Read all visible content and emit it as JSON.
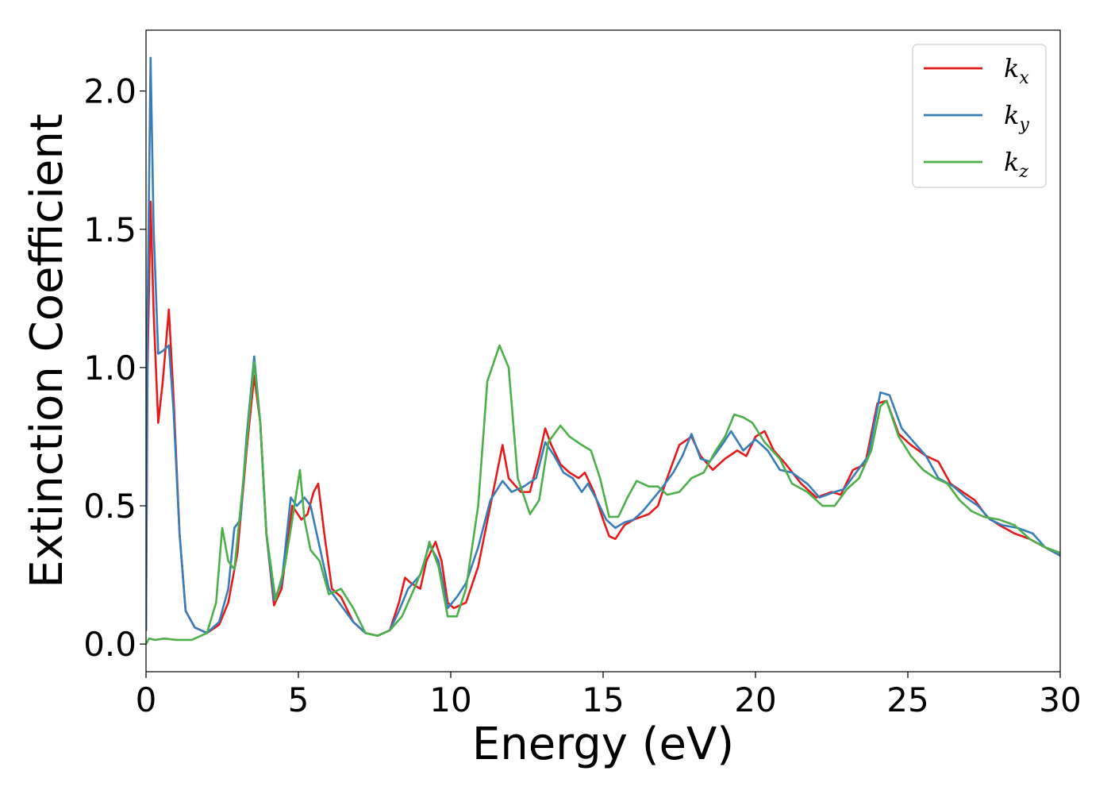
{
  "chart_data": {
    "type": "line",
    "xlabel": "Energy (eV)",
    "ylabel": "Extinction Coefficient",
    "xlim": [
      0,
      30
    ],
    "ylim": [
      -0.1,
      2.22
    ],
    "xticks": [
      0,
      5,
      10,
      15,
      20,
      25,
      30
    ],
    "yticks": [
      0.0,
      0.5,
      1.0,
      1.5,
      2.0
    ],
    "xtick_labels": [
      "0",
      "5",
      "10",
      "15",
      "20",
      "25",
      "30"
    ],
    "ytick_labels": [
      "0.0",
      "0.5",
      "1.0",
      "1.5",
      "2.0"
    ],
    "grid": false,
    "legend_position": "top-right",
    "series": [
      {
        "name": "kx",
        "label_main": "k",
        "label_sub": "x",
        "color": "#e41a1c",
        "points": [
          [
            0,
            0.05
          ],
          [
            0.05,
            1.0
          ],
          [
            0.15,
            1.6
          ],
          [
            0.25,
            1.2
          ],
          [
            0.4,
            0.8
          ],
          [
            0.55,
            0.95
          ],
          [
            0.75,
            1.21
          ],
          [
            0.9,
            0.9
          ],
          [
            1.1,
            0.4
          ],
          [
            1.3,
            0.12
          ],
          [
            1.6,
            0.06
          ],
          [
            2.0,
            0.04
          ],
          [
            2.4,
            0.07
          ],
          [
            2.7,
            0.15
          ],
          [
            3.0,
            0.33
          ],
          [
            3.3,
            0.7
          ],
          [
            3.55,
            0.97
          ],
          [
            3.75,
            0.8
          ],
          [
            3.95,
            0.4
          ],
          [
            4.2,
            0.14
          ],
          [
            4.45,
            0.2
          ],
          [
            4.8,
            0.5
          ],
          [
            5.1,
            0.45
          ],
          [
            5.3,
            0.47
          ],
          [
            5.5,
            0.55
          ],
          [
            5.65,
            0.58
          ],
          [
            5.85,
            0.4
          ],
          [
            6.1,
            0.2
          ],
          [
            6.4,
            0.17
          ],
          [
            6.8,
            0.08
          ],
          [
            7.2,
            0.04
          ],
          [
            7.6,
            0.03
          ],
          [
            8.0,
            0.05
          ],
          [
            8.3,
            0.15
          ],
          [
            8.5,
            0.24
          ],
          [
            8.7,
            0.22
          ],
          [
            9.0,
            0.2
          ],
          [
            9.2,
            0.3
          ],
          [
            9.5,
            0.37
          ],
          [
            9.7,
            0.3
          ],
          [
            9.9,
            0.15
          ],
          [
            10.1,
            0.13
          ],
          [
            10.5,
            0.15
          ],
          [
            10.9,
            0.28
          ],
          [
            11.3,
            0.5
          ],
          [
            11.7,
            0.72
          ],
          [
            11.9,
            0.6
          ],
          [
            12.3,
            0.55
          ],
          [
            12.6,
            0.55
          ],
          [
            12.9,
            0.68
          ],
          [
            13.1,
            0.78
          ],
          [
            13.3,
            0.72
          ],
          [
            13.6,
            0.65
          ],
          [
            13.9,
            0.62
          ],
          [
            14.2,
            0.6
          ],
          [
            14.4,
            0.62
          ],
          [
            14.7,
            0.55
          ],
          [
            15.0,
            0.45
          ],
          [
            15.2,
            0.39
          ],
          [
            15.4,
            0.38
          ],
          [
            15.7,
            0.43
          ],
          [
            16.0,
            0.45
          ],
          [
            16.5,
            0.47
          ],
          [
            16.8,
            0.5
          ],
          [
            17.1,
            0.6
          ],
          [
            17.5,
            0.72
          ],
          [
            17.9,
            0.75
          ],
          [
            18.2,
            0.68
          ],
          [
            18.6,
            0.63
          ],
          [
            19.0,
            0.67
          ],
          [
            19.4,
            0.7
          ],
          [
            19.7,
            0.68
          ],
          [
            20.0,
            0.75
          ],
          [
            20.3,
            0.77
          ],
          [
            20.6,
            0.7
          ],
          [
            21.0,
            0.65
          ],
          [
            21.5,
            0.58
          ],
          [
            22.0,
            0.53
          ],
          [
            22.5,
            0.55
          ],
          [
            22.8,
            0.54
          ],
          [
            23.2,
            0.63
          ],
          [
            23.6,
            0.65
          ],
          [
            24.0,
            0.87
          ],
          [
            24.3,
            0.88
          ],
          [
            24.7,
            0.76
          ],
          [
            25.1,
            0.72
          ],
          [
            25.6,
            0.68
          ],
          [
            26.0,
            0.66
          ],
          [
            26.4,
            0.58
          ],
          [
            26.8,
            0.55
          ],
          [
            27.2,
            0.52
          ],
          [
            27.6,
            0.46
          ],
          [
            28.0,
            0.43
          ],
          [
            28.5,
            0.4
          ],
          [
            29.0,
            0.38
          ],
          [
            29.5,
            0.35
          ],
          [
            30.0,
            0.32
          ]
        ]
      },
      {
        "name": "ky",
        "label_main": "k",
        "label_sub": "y",
        "color": "#377eb8",
        "points": [
          [
            0,
            0.05
          ],
          [
            0.05,
            1.2
          ],
          [
            0.15,
            2.12
          ],
          [
            0.25,
            1.5
          ],
          [
            0.4,
            1.05
          ],
          [
            0.55,
            1.06
          ],
          [
            0.75,
            1.08
          ],
          [
            0.9,
            0.85
          ],
          [
            1.1,
            0.4
          ],
          [
            1.3,
            0.12
          ],
          [
            1.6,
            0.06
          ],
          [
            2.0,
            0.04
          ],
          [
            2.4,
            0.08
          ],
          [
            2.7,
            0.2
          ],
          [
            2.9,
            0.42
          ],
          [
            3.1,
            0.45
          ],
          [
            3.3,
            0.75
          ],
          [
            3.55,
            1.04
          ],
          [
            3.75,
            0.8
          ],
          [
            3.95,
            0.4
          ],
          [
            4.2,
            0.16
          ],
          [
            4.45,
            0.22
          ],
          [
            4.75,
            0.53
          ],
          [
            4.95,
            0.5
          ],
          [
            5.2,
            0.53
          ],
          [
            5.4,
            0.5
          ],
          [
            5.7,
            0.35
          ],
          [
            6.0,
            0.2
          ],
          [
            6.4,
            0.14
          ],
          [
            6.8,
            0.08
          ],
          [
            7.2,
            0.04
          ],
          [
            7.6,
            0.03
          ],
          [
            8.0,
            0.05
          ],
          [
            8.3,
            0.12
          ],
          [
            8.6,
            0.2
          ],
          [
            9.0,
            0.25
          ],
          [
            9.3,
            0.36
          ],
          [
            9.6,
            0.3
          ],
          [
            9.9,
            0.13
          ],
          [
            10.2,
            0.17
          ],
          [
            10.5,
            0.22
          ],
          [
            10.9,
            0.35
          ],
          [
            11.3,
            0.52
          ],
          [
            11.7,
            0.59
          ],
          [
            12.0,
            0.55
          ],
          [
            12.4,
            0.57
          ],
          [
            12.8,
            0.6
          ],
          [
            13.1,
            0.73
          ],
          [
            13.4,
            0.68
          ],
          [
            13.7,
            0.62
          ],
          [
            14.0,
            0.6
          ],
          [
            14.3,
            0.55
          ],
          [
            14.5,
            0.58
          ],
          [
            14.8,
            0.52
          ],
          [
            15.1,
            0.45
          ],
          [
            15.4,
            0.42
          ],
          [
            15.7,
            0.44
          ],
          [
            16.0,
            0.45
          ],
          [
            16.3,
            0.48
          ],
          [
            16.6,
            0.52
          ],
          [
            16.9,
            0.56
          ],
          [
            17.3,
            0.62
          ],
          [
            17.6,
            0.68
          ],
          [
            17.9,
            0.76
          ],
          [
            18.2,
            0.67
          ],
          [
            18.5,
            0.66
          ],
          [
            18.9,
            0.72
          ],
          [
            19.2,
            0.77
          ],
          [
            19.6,
            0.7
          ],
          [
            20.0,
            0.74
          ],
          [
            20.4,
            0.7
          ],
          [
            20.8,
            0.63
          ],
          [
            21.2,
            0.62
          ],
          [
            21.7,
            0.58
          ],
          [
            22.1,
            0.53
          ],
          [
            22.6,
            0.55
          ],
          [
            22.9,
            0.56
          ],
          [
            23.3,
            0.62
          ],
          [
            23.7,
            0.68
          ],
          [
            24.1,
            0.91
          ],
          [
            24.4,
            0.9
          ],
          [
            24.8,
            0.78
          ],
          [
            25.2,
            0.73
          ],
          [
            25.6,
            0.68
          ],
          [
            26.0,
            0.6
          ],
          [
            26.5,
            0.57
          ],
          [
            26.9,
            0.53
          ],
          [
            27.3,
            0.5
          ],
          [
            27.7,
            0.45
          ],
          [
            28.1,
            0.43
          ],
          [
            28.6,
            0.42
          ],
          [
            29.1,
            0.4
          ],
          [
            29.5,
            0.35
          ],
          [
            30.0,
            0.32
          ]
        ]
      },
      {
        "name": "kz",
        "label_main": "k",
        "label_sub": "z",
        "color": "#4daf4a",
        "points": [
          [
            0,
            0.0
          ],
          [
            0.1,
            0.02
          ],
          [
            0.3,
            0.015
          ],
          [
            0.6,
            0.02
          ],
          [
            1.0,
            0.015
          ],
          [
            1.5,
            0.015
          ],
          [
            2.0,
            0.04
          ],
          [
            2.3,
            0.15
          ],
          [
            2.5,
            0.42
          ],
          [
            2.7,
            0.3
          ],
          [
            2.9,
            0.27
          ],
          [
            3.2,
            0.6
          ],
          [
            3.55,
            1.02
          ],
          [
            3.75,
            0.8
          ],
          [
            3.95,
            0.4
          ],
          [
            4.25,
            0.16
          ],
          [
            4.55,
            0.28
          ],
          [
            4.8,
            0.45
          ],
          [
            5.05,
            0.63
          ],
          [
            5.2,
            0.45
          ],
          [
            5.4,
            0.34
          ],
          [
            5.7,
            0.3
          ],
          [
            6.0,
            0.18
          ],
          [
            6.4,
            0.2
          ],
          [
            6.8,
            0.13
          ],
          [
            7.2,
            0.04
          ],
          [
            7.6,
            0.03
          ],
          [
            8.0,
            0.05
          ],
          [
            8.4,
            0.1
          ],
          [
            8.8,
            0.2
          ],
          [
            9.1,
            0.28
          ],
          [
            9.3,
            0.37
          ],
          [
            9.6,
            0.28
          ],
          [
            9.9,
            0.1
          ],
          [
            10.2,
            0.1
          ],
          [
            10.5,
            0.2
          ],
          [
            10.9,
            0.5
          ],
          [
            11.2,
            0.95
          ],
          [
            11.6,
            1.08
          ],
          [
            11.9,
            1.0
          ],
          [
            12.2,
            0.6
          ],
          [
            12.6,
            0.47
          ],
          [
            12.9,
            0.52
          ],
          [
            13.2,
            0.73
          ],
          [
            13.6,
            0.79
          ],
          [
            13.9,
            0.75
          ],
          [
            14.3,
            0.72
          ],
          [
            14.6,
            0.7
          ],
          [
            14.9,
            0.6
          ],
          [
            15.2,
            0.46
          ],
          [
            15.5,
            0.46
          ],
          [
            15.8,
            0.53
          ],
          [
            16.1,
            0.59
          ],
          [
            16.5,
            0.57
          ],
          [
            16.8,
            0.57
          ],
          [
            17.1,
            0.54
          ],
          [
            17.5,
            0.55
          ],
          [
            17.9,
            0.6
          ],
          [
            18.3,
            0.62
          ],
          [
            18.7,
            0.7
          ],
          [
            19.0,
            0.75
          ],
          [
            19.3,
            0.83
          ],
          [
            19.6,
            0.82
          ],
          [
            19.9,
            0.8
          ],
          [
            20.3,
            0.73
          ],
          [
            20.8,
            0.67
          ],
          [
            21.2,
            0.58
          ],
          [
            21.7,
            0.55
          ],
          [
            22.2,
            0.5
          ],
          [
            22.6,
            0.5
          ],
          [
            23.0,
            0.56
          ],
          [
            23.4,
            0.6
          ],
          [
            23.8,
            0.7
          ],
          [
            24.1,
            0.86
          ],
          [
            24.3,
            0.88
          ],
          [
            24.7,
            0.75
          ],
          [
            25.1,
            0.68
          ],
          [
            25.5,
            0.63
          ],
          [
            25.9,
            0.6
          ],
          [
            26.3,
            0.58
          ],
          [
            26.7,
            0.52
          ],
          [
            27.1,
            0.48
          ],
          [
            27.5,
            0.46
          ],
          [
            28.0,
            0.45
          ],
          [
            28.5,
            0.43
          ],
          [
            29.0,
            0.38
          ],
          [
            29.5,
            0.35
          ],
          [
            30.0,
            0.33
          ]
        ]
      }
    ]
  }
}
